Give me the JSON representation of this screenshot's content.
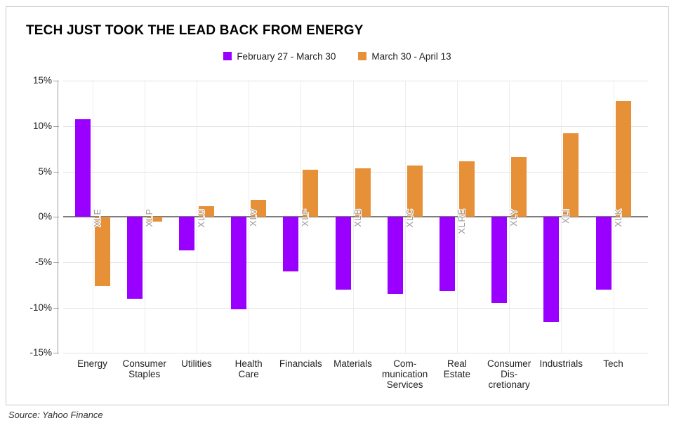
{
  "chart": {
    "title": "TECH JUST TOOK THE LEAD BACK FROM ENERGY",
    "source": "Source: Yahoo Finance"
  },
  "chart_data": {
    "type": "bar",
    "title": "TECH JUST TOOK THE LEAD BACK FROM ENERGY",
    "ylabel": "",
    "xlabel": "",
    "ylim": [
      -15,
      15
    ],
    "grid": true,
    "legend_position": "top-center",
    "y_ticks": [
      {
        "value": 15,
        "label": "15%"
      },
      {
        "value": 10,
        "label": "10%"
      },
      {
        "value": 5,
        "label": "5%"
      },
      {
        "value": 0,
        "label": "0%"
      },
      {
        "value": -5,
        "label": "-5%"
      },
      {
        "value": -10,
        "label": "-10%"
      },
      {
        "value": -15,
        "label": "-15%"
      }
    ],
    "categories": [
      {
        "label": "Energy",
        "lines": [
          "Energy"
        ],
        "ticker": "XLE"
      },
      {
        "label": "Consumer Staples",
        "lines": [
          "Consumer",
          "Staples"
        ],
        "ticker": "XLP"
      },
      {
        "label": "Utilities",
        "lines": [
          "Utilities"
        ],
        "ticker": "XLU"
      },
      {
        "label": "Health Care",
        "lines": [
          "Health",
          "Care"
        ],
        "ticker": "XLV"
      },
      {
        "label": "Financials",
        "lines": [
          "Financials"
        ],
        "ticker": "XLF"
      },
      {
        "label": "Materials",
        "lines": [
          "Materials"
        ],
        "ticker": "XLB"
      },
      {
        "label": "Communication Services",
        "lines": [
          "Com-",
          "munication",
          "Services"
        ],
        "ticker": "XLC"
      },
      {
        "label": "Real Estate",
        "lines": [
          "Real",
          "Estate"
        ],
        "ticker": "XLRE"
      },
      {
        "label": "Consumer Discretionary",
        "lines": [
          "Consumer",
          "Dis-",
          "cretionary"
        ],
        "ticker": "XLY"
      },
      {
        "label": "Industrials",
        "lines": [
          "Industrials"
        ],
        "ticker": "XLI"
      },
      {
        "label": "Tech",
        "lines": [
          "Tech"
        ],
        "ticker": "XLK"
      }
    ],
    "series": [
      {
        "name": "February 27 - March 30",
        "color": "#9900FF",
        "values": [
          10.8,
          -9.0,
          -3.7,
          -10.2,
          -6.0,
          -8.0,
          -8.5,
          -8.2,
          -9.5,
          -11.6,
          -8.0
        ]
      },
      {
        "name": "March 30 - April 13",
        "color": "#E69138",
        "values": [
          -7.6,
          -0.5,
          1.2,
          1.9,
          5.2,
          5.4,
          5.7,
          6.1,
          6.6,
          9.2,
          12.8
        ]
      }
    ],
    "annotation_color": "#9a9a9a",
    "source": "Source: Yahoo Finance"
  }
}
